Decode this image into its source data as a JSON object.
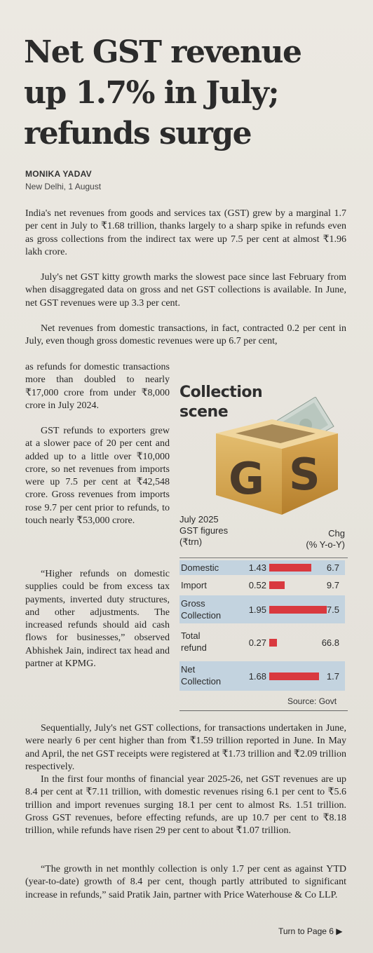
{
  "headline": [
    "Net GST revenue",
    "up 1.7% in July;",
    "refunds surge"
  ],
  "byline": "MONIKA YADAV",
  "dateline": "New Delhi, 1 August",
  "paragraphs": {
    "p1": "India's net revenues from goods and services tax (GST) grew by a marginal 1.7 per cent in July to ₹1.68 trillion, thanks largely to a sharp spike in refunds even as gross collections from the indirect tax were up 7.5 per cent at almost ₹1.96 lakh crore.",
    "p2": "July's net GST kitty growth marks the slowest pace since last February from when disaggregated data on gross and net GST collections is available. In June, net GST revenues were up 3.3 per cent.",
    "p3": "Net revenues from domestic transactions, in fact, contracted 0.2 per cent in July, even though gross domestic revenues were up 6.7 per cent,",
    "p3b": "as refunds for domestic transactions more than doubled to nearly ₹17,000 crore from under ₹8,000 crore in July 2024.",
    "p4": "GST refunds to exporters grew at a slower pace of 20 per cent and added up to a little over ₹10,000 crore, so net revenues from imports were up 7.5 per cent at ₹42,548 crore. Gross revenues from imports rose 9.7 per cent prior to refunds, to touch nearly ₹53,000 crore.",
    "p5": "“Higher refunds on domestic supplies could be from excess tax payments, inverted duty structures, and other adjustments. The increased refunds should aid cash flows for businesses,” observed Abhishek Jain, indirect tax head and partner at KPMG.",
    "p6": "Sequentially, July's net GST collections, for transactions undertaken in June, were nearly 6 per cent higher than from ₹1.59 trillion reported in June. In May and April, the net GST receipts were registered at ₹1.73 trillion and ₹2.09 trillion respectively.",
    "p7": "In the first four months of financial year 2025-26, net GST revenues are up 8.4 per cent at ₹7.11 trillion, with domestic revenues rising 6.1 per cent to ₹5.6 trillion and import revenues surging 18.1 per cent to almost Rs. 1.51 trillion. Gross GST revenues, before effecting refunds, are up 10.7 per cent to ₹8.18 trillion, while refunds have risen 29 per cent to about ₹1.07 trillion.",
    "p8": "“The growth in net monthly collection is only 1.7 per cent as against YTD (year-to-date) growth of 8.4 per cent, though partly attributed to significant increase in refunds,” said Pratik Jain, partner with Price Waterhouse & Co LLP."
  },
  "graphic": {
    "title": [
      "Collection",
      "scene"
    ],
    "box_letters": [
      "G",
      "S"
    ],
    "head_left": [
      "July 2025",
      "GST figures",
      "(₹trn)"
    ],
    "head_right": [
      "Chg",
      "(% Y-o-Y)"
    ],
    "accent": "#d9393f",
    "shade": "#c3d3df",
    "rows": [
      {
        "label": [
          "Domestic"
        ],
        "value": "1.43",
        "bar": 6.7,
        "chg": "6.7",
        "shaded": true
      },
      {
        "label": [
          "Import"
        ],
        "value": "0.52",
        "bar": 9.7,
        "chg": "9.7",
        "shaded": false
      },
      {
        "label": [
          "Gross",
          "Collection"
        ],
        "value": "1.95",
        "bar": 7.5,
        "chg": "7.5",
        "shaded": true
      },
      {
        "label": [
          "Total",
          "refund"
        ],
        "value": "0.27",
        "bar": 66.8,
        "chg": "66.8",
        "shaded": false
      },
      {
        "label": [
          "Net",
          "Collection"
        ],
        "value": "1.68",
        "bar": 1.7,
        "chg": "1.7",
        "shaded": true
      }
    ],
    "source": "Source: Govt"
  },
  "turn_to": "Turn to Page 6 ▶"
}
